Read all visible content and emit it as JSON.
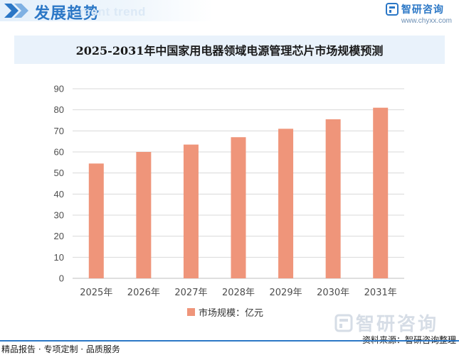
{
  "header": {
    "section_title": "发展趋势",
    "section_subtitle": "ment trend",
    "brand_name": "智研咨询",
    "brand_url": "www.chyxx.com"
  },
  "colors": {
    "bar": "#ef957a",
    "accent": "#2b77c6",
    "title_bg": "#e9f2fb"
  },
  "chart_data": {
    "type": "bar",
    "title": "2025-2031年中国家用电器领域电源管理芯片市场规模预测",
    "categories": [
      "2025年",
      "2026年",
      "2027年",
      "2028年",
      "2029年",
      "2030年",
      "2031年"
    ],
    "series": [
      {
        "name": "市场规模：亿元",
        "values": [
          54.5,
          60,
          63.5,
          67,
          71,
          75.5,
          81
        ]
      }
    ],
    "yticks": [
      0,
      10,
      20,
      30,
      40,
      50,
      60,
      70,
      80,
      90
    ],
    "ylim": [
      0,
      90
    ],
    "grid": "horizontal",
    "legend": "bottom-center"
  },
  "watermark": {
    "text": "智研咨询"
  },
  "source": "资料来源：智研咨询整理",
  "footer": "精品报告 · 专项定制 · 品质服务"
}
